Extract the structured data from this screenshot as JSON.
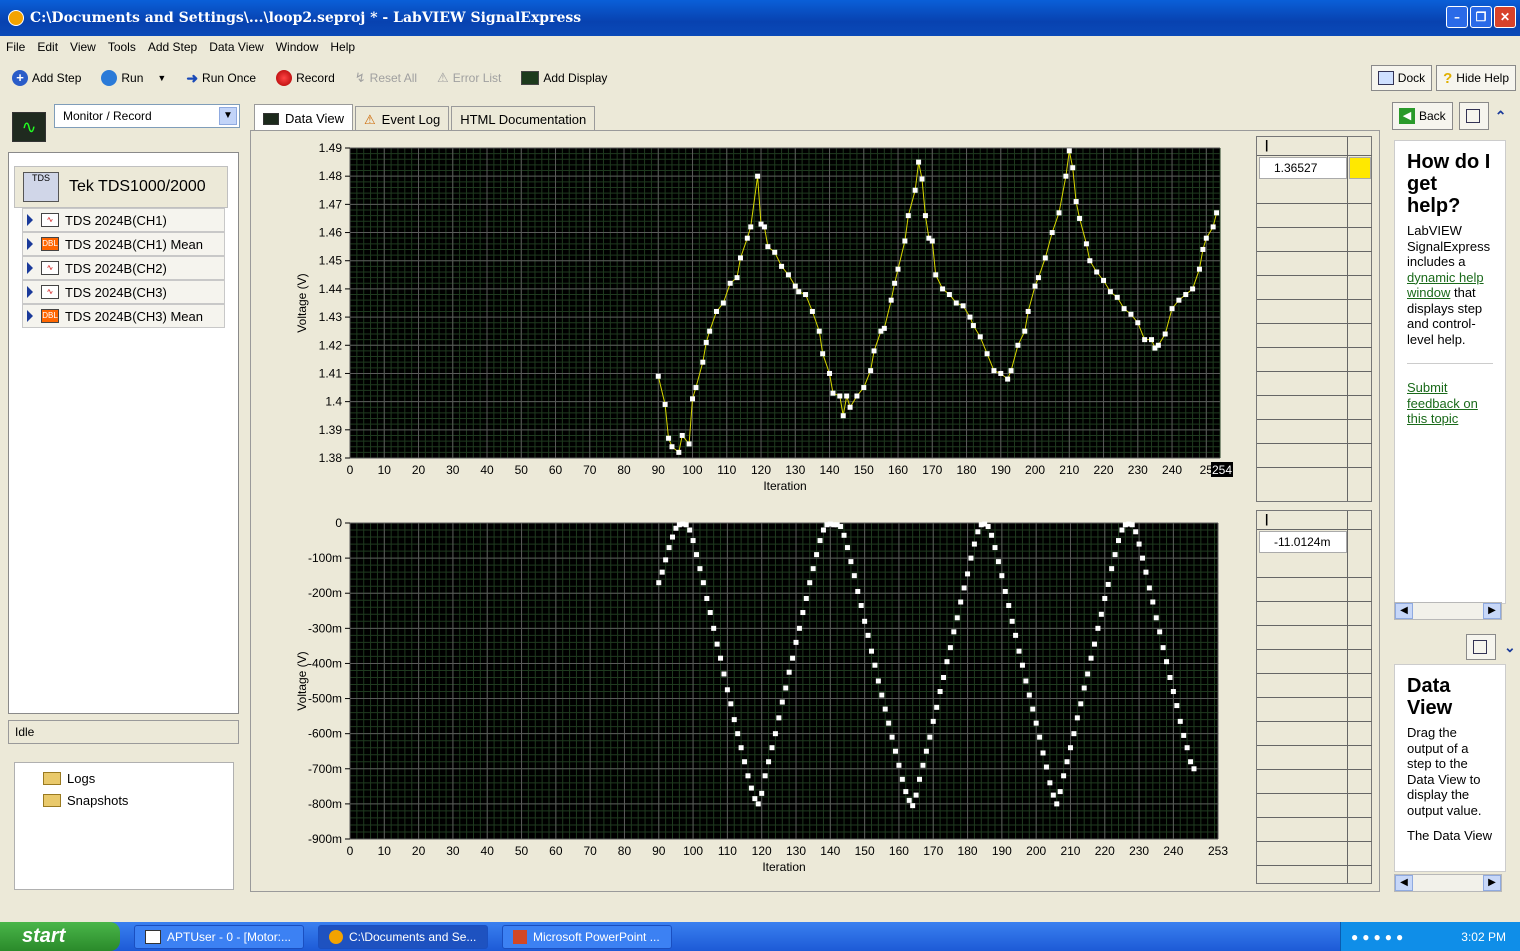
{
  "window": {
    "title": "C:\\Documents and Settings\\...\\loop2.seproj * - LabVIEW SignalExpress"
  },
  "menu": [
    "File",
    "Edit",
    "View",
    "Tools",
    "Add Step",
    "Data View",
    "Window",
    "Help"
  ],
  "toolbar": {
    "add_step": "Add Step",
    "run": "Run",
    "run_once": "Run Once",
    "record": "Record",
    "reset_all": "Reset All",
    "error_list": "Error List",
    "add_display": "Add Display",
    "dock": "Dock",
    "hide_help": "Hide Help"
  },
  "left": {
    "mode": "Monitor / Record",
    "device": "Tek TDS1000/2000",
    "device_icon_label": "TDS",
    "steps": [
      {
        "label": "TDS 2024B(CH1)",
        "icon": "waveform-icon"
      },
      {
        "label": "TDS 2024B(CH1) Mean",
        "icon": "dbl-icon"
      },
      {
        "label": "TDS 2024B(CH2)",
        "icon": "waveform-icon"
      },
      {
        "label": "TDS 2024B(CH3)",
        "icon": "waveform-icon"
      },
      {
        "label": "TDS 2024B(CH3) Mean",
        "icon": "dbl-icon"
      }
    ],
    "dbl_tag": "DBL",
    "status": "Idle",
    "logs": [
      "Logs",
      "Snapshots"
    ]
  },
  "tabs": [
    "Data View",
    "Event Log",
    "HTML Documentation"
  ],
  "indicators": {
    "top_value": "1.36527",
    "bottom_value": "-11.0124m"
  },
  "help": {
    "back": "Back",
    "pane1_title": "How do I get help?",
    "pane1_body_pre": "LabVIEW SignalExpress includes a ",
    "pane1_link": "dynamic help window",
    "pane1_body_post": " that displays step and control-level help.",
    "pane1_feedback": "Submit feedback on this topic",
    "pane2_title": "Data View",
    "pane2_body": "Drag the output of a step to the Data View to display the output value.",
    "pane2_body2": "The Data View"
  },
  "taskbar": {
    "start": "start",
    "tasks": [
      "APTUser - 0 - [Motor:...",
      "C:\\Documents and Se...",
      "Microsoft PowerPoint ..."
    ],
    "clock": "3:02 PM"
  },
  "chart_data": [
    {
      "type": "line",
      "title": "",
      "xlabel": "Iteration",
      "ylabel": "Voltage (V)",
      "xlim": [
        0,
        254
      ],
      "ylim": [
        1.38,
        1.49
      ],
      "x_ticks": [
        "0",
        "10",
        "20",
        "30",
        "40",
        "50",
        "60",
        "70",
        "80",
        "90",
        "100",
        "110",
        "120",
        "130",
        "140",
        "150",
        "160",
        "170",
        "180",
        "190",
        "200",
        "210",
        "220",
        "230",
        "240",
        "25"
      ],
      "x_end_label": "254",
      "y_ticks": [
        "1.38",
        "1.39",
        "1.4",
        "1.41",
        "1.42",
        "1.43",
        "1.44",
        "1.45",
        "1.46",
        "1.47",
        "1.48",
        "1.49"
      ],
      "grid": true,
      "line_color": "#d8d800",
      "marker_color": "#ffffff",
      "points": [
        [
          90,
          1.409
        ],
        [
          92,
          1.399
        ],
        [
          93,
          1.387
        ],
        [
          94,
          1.384
        ],
        [
          96,
          1.382
        ],
        [
          97,
          1.388
        ],
        [
          99,
          1.385
        ],
        [
          100,
          1.401
        ],
        [
          101,
          1.405
        ],
        [
          103,
          1.414
        ],
        [
          104,
          1.421
        ],
        [
          105,
          1.425
        ],
        [
          107,
          1.432
        ],
        [
          109,
          1.435
        ],
        [
          111,
          1.442
        ],
        [
          113,
          1.444
        ],
        [
          114,
          1.451
        ],
        [
          116,
          1.458
        ],
        [
          117,
          1.462
        ],
        [
          119,
          1.48
        ],
        [
          120,
          1.463
        ],
        [
          121,
          1.462
        ],
        [
          122,
          1.455
        ],
        [
          124,
          1.453
        ],
        [
          126,
          1.448
        ],
        [
          128,
          1.445
        ],
        [
          130,
          1.441
        ],
        [
          131,
          1.439
        ],
        [
          133,
          1.438
        ],
        [
          135,
          1.432
        ],
        [
          137,
          1.425
        ],
        [
          138,
          1.417
        ],
        [
          140,
          1.41
        ],
        [
          141,
          1.403
        ],
        [
          143,
          1.402
        ],
        [
          144,
          1.395
        ],
        [
          145,
          1.402
        ],
        [
          146,
          1.398
        ],
        [
          148,
          1.402
        ],
        [
          150,
          1.405
        ],
        [
          152,
          1.411
        ],
        [
          153,
          1.418
        ],
        [
          155,
          1.425
        ],
        [
          156,
          1.426
        ],
        [
          158,
          1.436
        ],
        [
          159,
          1.442
        ],
        [
          160,
          1.447
        ],
        [
          162,
          1.457
        ],
        [
          163,
          1.466
        ],
        [
          165,
          1.475
        ],
        [
          166,
          1.485
        ],
        [
          167,
          1.479
        ],
        [
          168,
          1.466
        ],
        [
          169,
          1.458
        ],
        [
          170,
          1.457
        ],
        [
          171,
          1.445
        ],
        [
          173,
          1.44
        ],
        [
          175,
          1.438
        ],
        [
          177,
          1.435
        ],
        [
          179,
          1.434
        ],
        [
          181,
          1.43
        ],
        [
          182,
          1.427
        ],
        [
          184,
          1.423
        ],
        [
          186,
          1.417
        ],
        [
          188,
          1.411
        ],
        [
          190,
          1.41
        ],
        [
          192,
          1.408
        ],
        [
          193,
          1.411
        ],
        [
          195,
          1.42
        ],
        [
          197,
          1.425
        ],
        [
          198,
          1.432
        ],
        [
          200,
          1.441
        ],
        [
          201,
          1.444
        ],
        [
          203,
          1.451
        ],
        [
          205,
          1.46
        ],
        [
          207,
          1.467
        ],
        [
          209,
          1.48
        ],
        [
          210,
          1.489
        ],
        [
          211,
          1.483
        ],
        [
          212,
          1.471
        ],
        [
          213,
          1.465
        ],
        [
          215,
          1.456
        ],
        [
          216,
          1.45
        ],
        [
          218,
          1.446
        ],
        [
          220,
          1.443
        ],
        [
          222,
          1.439
        ],
        [
          224,
          1.437
        ],
        [
          226,
          1.433
        ],
        [
          228,
          1.431
        ],
        [
          230,
          1.428
        ],
        [
          232,
          1.422
        ],
        [
          234,
          1.422
        ],
        [
          235,
          1.419
        ],
        [
          236,
          1.42
        ],
        [
          238,
          1.424
        ],
        [
          240,
          1.433
        ],
        [
          242,
          1.436
        ],
        [
          244,
          1.438
        ],
        [
          246,
          1.44
        ],
        [
          248,
          1.447
        ],
        [
          249,
          1.454
        ],
        [
          250,
          1.458
        ],
        [
          252,
          1.462
        ],
        [
          253,
          1.467
        ]
      ]
    },
    {
      "type": "scatter",
      "title": "",
      "xlabel": "Iteration",
      "ylabel": "Voltage (V)",
      "xlim": [
        0,
        253
      ],
      "ylim": [
        -900,
        0
      ],
      "y_unit": "m",
      "x_ticks": [
        "0",
        "10",
        "20",
        "30",
        "40",
        "50",
        "60",
        "70",
        "80",
        "90",
        "100",
        "110",
        "120",
        "130",
        "140",
        "150",
        "160",
        "170",
        "180",
        "190",
        "200",
        "210",
        "220",
        "230",
        "240",
        "253"
      ],
      "y_ticks": [
        "0",
        "-100m",
        "-200m",
        "-300m",
        "-400m",
        "-500m",
        "-600m",
        "-700m",
        "-800m",
        "-900m"
      ],
      "grid": true,
      "marker_color": "#ffffff",
      "points": [
        [
          90,
          -170
        ],
        [
          91,
          -140
        ],
        [
          92,
          -105
        ],
        [
          93,
          -70
        ],
        [
          94,
          -40
        ],
        [
          95,
          -15
        ],
        [
          96,
          -5
        ],
        [
          97,
          -3
        ],
        [
          98,
          -5
        ],
        [
          99,
          -20
        ],
        [
          100,
          -50
        ],
        [
          101,
          -90
        ],
        [
          102,
          -130
        ],
        [
          103,
          -170
        ],
        [
          104,
          -215
        ],
        [
          105,
          -255
        ],
        [
          106,
          -300
        ],
        [
          107,
          -345
        ],
        [
          108,
          -385
        ],
        [
          109,
          -430
        ],
        [
          110,
          -475
        ],
        [
          111,
          -515
        ],
        [
          112,
          -560
        ],
        [
          113,
          -600
        ],
        [
          114,
          -640
        ],
        [
          115,
          -680
        ],
        [
          116,
          -720
        ],
        [
          117,
          -755
        ],
        [
          118,
          -785
        ],
        [
          119,
          -800
        ],
        [
          120,
          -770
        ],
        [
          121,
          -720
        ],
        [
          122,
          -680
        ],
        [
          123,
          -640
        ],
        [
          124,
          -600
        ],
        [
          125,
          -555
        ],
        [
          126,
          -510
        ],
        [
          127,
          -470
        ],
        [
          128,
          -425
        ],
        [
          129,
          -385
        ],
        [
          130,
          -340
        ],
        [
          131,
          -300
        ],
        [
          132,
          -255
        ],
        [
          133,
          -215
        ],
        [
          134,
          -170
        ],
        [
          135,
          -130
        ],
        [
          136,
          -90
        ],
        [
          137,
          -50
        ],
        [
          138,
          -20
        ],
        [
          139,
          -5
        ],
        [
          140,
          -3
        ],
        [
          141,
          -5
        ],
        [
          142,
          -5
        ],
        [
          143,
          -10
        ],
        [
          144,
          -35
        ],
        [
          145,
          -70
        ],
        [
          146,
          -110
        ],
        [
          147,
          -150
        ],
        [
          148,
          -195
        ],
        [
          149,
          -235
        ],
        [
          150,
          -280
        ],
        [
          151,
          -320
        ],
        [
          152,
          -365
        ],
        [
          153,
          -405
        ],
        [
          154,
          -450
        ],
        [
          155,
          -490
        ],
        [
          156,
          -530
        ],
        [
          157,
          -570
        ],
        [
          158,
          -610
        ],
        [
          159,
          -650
        ],
        [
          160,
          -690
        ],
        [
          161,
          -730
        ],
        [
          162,
          -765
        ],
        [
          163,
          -790
        ],
        [
          164,
          -805
        ],
        [
          165,
          -775
        ],
        [
          166,
          -730
        ],
        [
          167,
          -690
        ],
        [
          168,
          -650
        ],
        [
          169,
          -610
        ],
        [
          170,
          -565
        ],
        [
          171,
          -525
        ],
        [
          172,
          -480
        ],
        [
          173,
          -440
        ],
        [
          174,
          -395
        ],
        [
          175,
          -355
        ],
        [
          176,
          -310
        ],
        [
          177,
          -270
        ],
        [
          178,
          -225
        ],
        [
          179,
          -185
        ],
        [
          180,
          -145
        ],
        [
          181,
          -100
        ],
        [
          182,
          -60
        ],
        [
          183,
          -25
        ],
        [
          184,
          -5
        ],
        [
          185,
          -3
        ],
        [
          186,
          -10
        ],
        [
          187,
          -35
        ],
        [
          188,
          -70
        ],
        [
          189,
          -110
        ],
        [
          190,
          -150
        ],
        [
          191,
          -195
        ],
        [
          192,
          -235
        ],
        [
          193,
          -280
        ],
        [
          194,
          -320
        ],
        [
          195,
          -365
        ],
        [
          196,
          -405
        ],
        [
          197,
          -450
        ],
        [
          198,
          -490
        ],
        [
          199,
          -530
        ],
        [
          200,
          -570
        ],
        [
          201,
          -610
        ],
        [
          202,
          -655
        ],
        [
          203,
          -695
        ],
        [
          204,
          -740
        ],
        [
          205,
          -775
        ],
        [
          206,
          -800
        ],
        [
          207,
          -765
        ],
        [
          208,
          -720
        ],
        [
          209,
          -680
        ],
        [
          210,
          -640
        ],
        [
          211,
          -600
        ],
        [
          212,
          -555
        ],
        [
          213,
          -515
        ],
        [
          214,
          -470
        ],
        [
          215,
          -430
        ],
        [
          216,
          -385
        ],
        [
          217,
          -345
        ],
        [
          218,
          -300
        ],
        [
          219,
          -260
        ],
        [
          220,
          -215
        ],
        [
          221,
          -175
        ],
        [
          222,
          -130
        ],
        [
          223,
          -90
        ],
        [
          224,
          -50
        ],
        [
          225,
          -20
        ],
        [
          226,
          -5
        ],
        [
          227,
          -3
        ],
        [
          228,
          -5
        ],
        [
          229,
          -25
        ],
        [
          230,
          -60
        ],
        [
          231,
          -100
        ],
        [
          232,
          -140
        ],
        [
          233,
          -185
        ],
        [
          234,
          -225
        ],
        [
          235,
          -270
        ],
        [
          236,
          -310
        ],
        [
          237,
          -355
        ],
        [
          238,
          -395
        ],
        [
          239,
          -440
        ],
        [
          240,
          -480
        ],
        [
          241,
          -520
        ],
        [
          242,
          -565
        ],
        [
          243,
          -605
        ],
        [
          244,
          -640
        ],
        [
          245,
          -680
        ],
        [
          246,
          -700
        ]
      ]
    }
  ]
}
